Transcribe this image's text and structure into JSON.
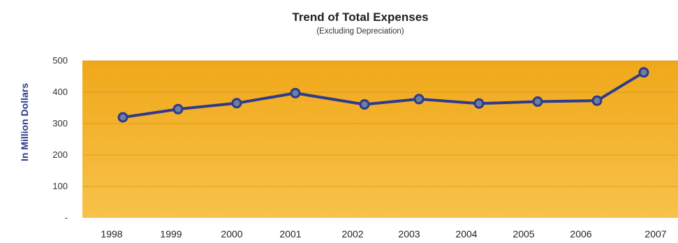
{
  "chart_data": {
    "type": "line",
    "title": "Trend of Total Expenses",
    "subtitle": "(Excluding Depreciation)",
    "xlabel": "",
    "ylabel": "In Million Dollars",
    "categories": [
      "1998",
      "1999",
      "2000",
      "2001",
      "2002",
      "2003",
      "2004",
      "2005",
      "2006",
      "2007"
    ],
    "series": [
      {
        "values": [
          320,
          346,
          365,
          397,
          361,
          378,
          364,
          370,
          373,
          463
        ]
      }
    ],
    "yticks": [
      "-",
      "100",
      "200",
      "300",
      "400",
      "500"
    ],
    "ylim": [
      0,
      500
    ],
    "grid": true,
    "legend": "none",
    "colors": {
      "line": "#2e3a8c",
      "marker_fill": "#6b7fa0",
      "plot_top": "#f0a81a",
      "plot_bottom": "#f7c24a",
      "grid": "#c98a18",
      "ylabel": "#2b3a8a"
    }
  }
}
